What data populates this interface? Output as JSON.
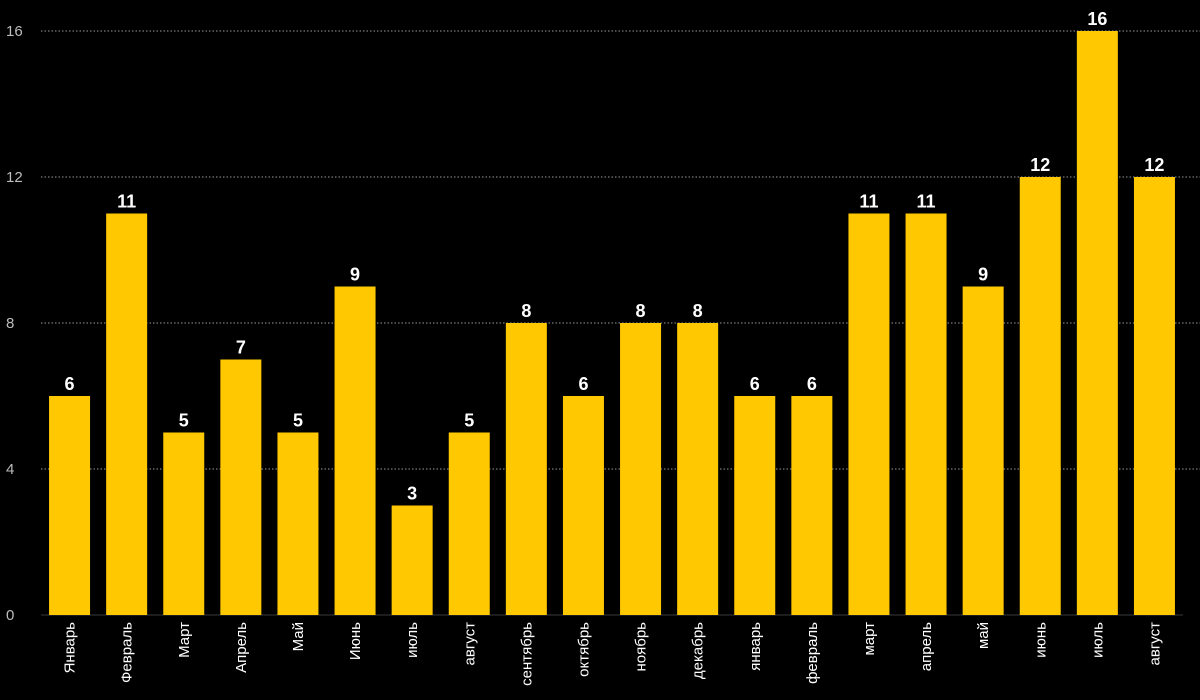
{
  "chart_data": {
    "type": "bar",
    "categories": [
      "Январь",
      "Февраль",
      "Март",
      "Апрель",
      "Май",
      "Июнь",
      "июль",
      "август",
      "сентябрь",
      "октябрь",
      "ноябрь",
      "декабрь",
      "январь",
      "февраль",
      "март",
      "апрель",
      "май",
      "июнь",
      "июль",
      "август"
    ],
    "values": [
      6,
      11,
      5,
      7,
      5,
      9,
      3,
      5,
      8,
      6,
      8,
      8,
      6,
      6,
      11,
      11,
      9,
      12,
      16,
      12
    ],
    "yticks": [
      "0",
      "4",
      "8",
      "12",
      "16"
    ],
    "ylim": [
      0,
      16
    ],
    "grid": true,
    "title": "",
    "xlabel": "",
    "ylabel": "",
    "colors": {
      "background": "#000000",
      "bar": "#FFC800",
      "grid": "#9a9a9a",
      "value_label": "#ffffff",
      "tick_label": "#bdbdbd"
    }
  }
}
